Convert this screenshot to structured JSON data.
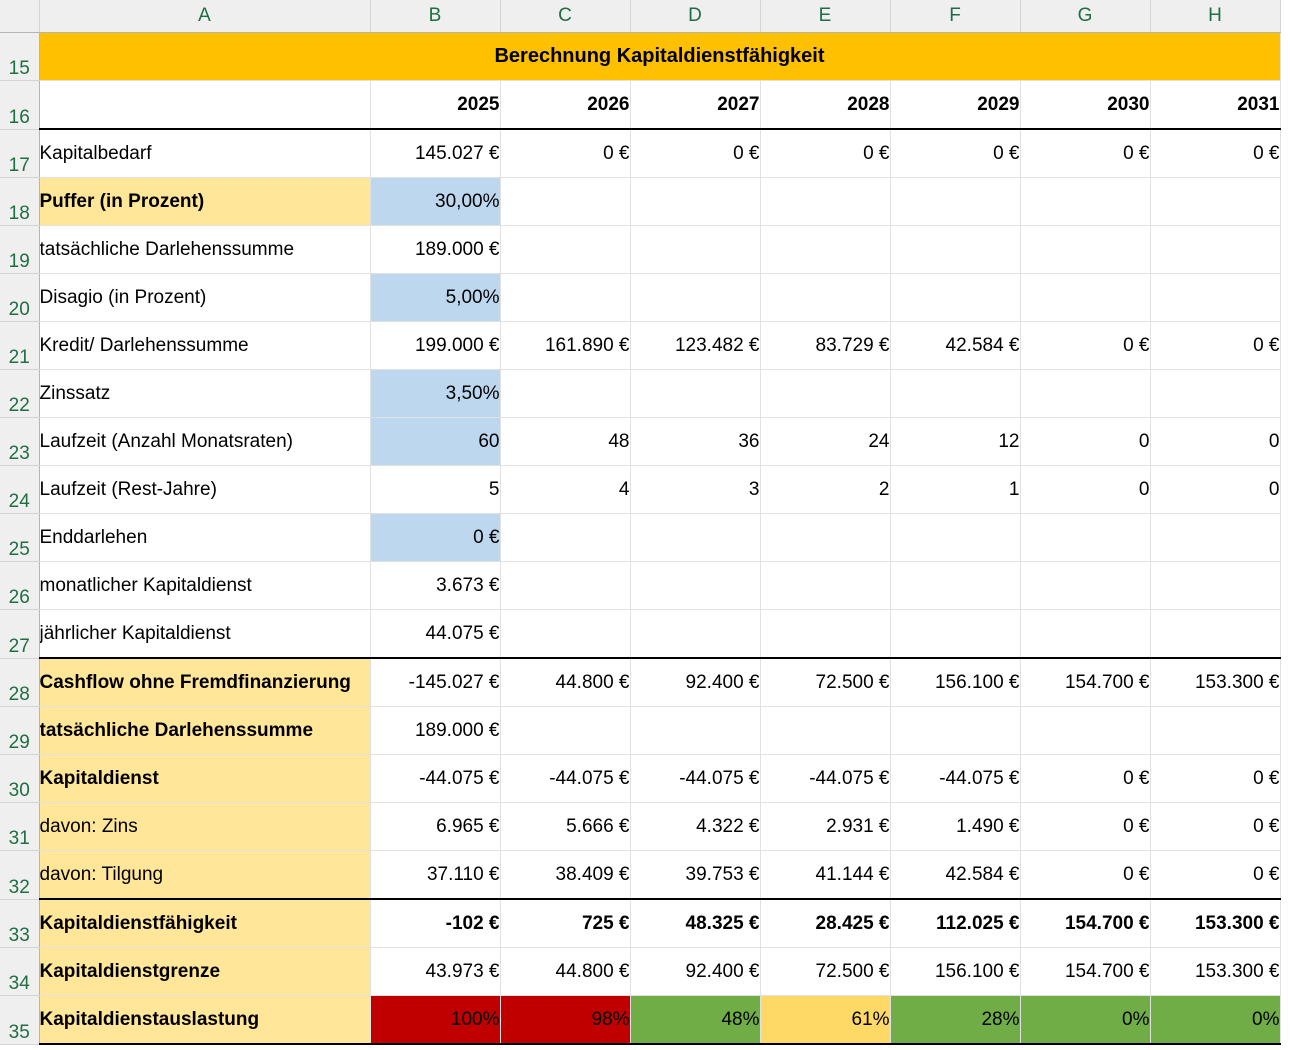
{
  "columns": [
    "A",
    "B",
    "C",
    "D",
    "E",
    "F",
    "G",
    "H"
  ],
  "title": "Berechnung Kapitaldienstfähigkeit",
  "years": [
    "2025",
    "2026",
    "2027",
    "2028",
    "2029",
    "2030",
    "2031"
  ],
  "rows": [
    {
      "num": "17",
      "label": "Kapitalbedarf",
      "values": [
        "145.027 €",
        "0 €",
        "0 €",
        "0 €",
        "0 €",
        "0 €",
        "0 €"
      ]
    },
    {
      "num": "18",
      "label": "Puffer (in Prozent)",
      "values": [
        "30,00%",
        "",
        "",
        "",
        "",
        "",
        ""
      ]
    },
    {
      "num": "19",
      "label": "tatsächliche Darlehenssumme",
      "values": [
        "189.000 €",
        "",
        "",
        "",
        "",
        "",
        ""
      ]
    },
    {
      "num": "20",
      "label": "Disagio (in Prozent)",
      "values": [
        "5,00%",
        "",
        "",
        "",
        "",
        "",
        ""
      ]
    },
    {
      "num": "21",
      "label": "Kredit/ Darlehenssumme",
      "values": [
        "199.000 €",
        "161.890 €",
        "123.482 €",
        "83.729 €",
        "42.584 €",
        "0 €",
        "0 €"
      ]
    },
    {
      "num": "22",
      "label": "Zinssatz",
      "values": [
        "3,50%",
        "",
        "",
        "",
        "",
        "",
        ""
      ]
    },
    {
      "num": "23",
      "label": "Laufzeit (Anzahl Monatsraten)",
      "values": [
        "60",
        "48",
        "36",
        "24",
        "12",
        "0",
        "0"
      ]
    },
    {
      "num": "24",
      "label": "Laufzeit (Rest-Jahre)",
      "values": [
        "5",
        "4",
        "3",
        "2",
        "1",
        "0",
        "0"
      ]
    },
    {
      "num": "25",
      "label": "Enddarlehen",
      "values": [
        "0 €",
        "",
        "",
        "",
        "",
        "",
        ""
      ]
    },
    {
      "num": "26",
      "label": "monatlicher Kapitaldienst",
      "values": [
        "3.673 €",
        "",
        "",
        "",
        "",
        "",
        ""
      ]
    },
    {
      "num": "27",
      "label": "jährlicher Kapitaldienst",
      "values": [
        "44.075 €",
        "",
        "",
        "",
        "",
        "",
        ""
      ]
    },
    {
      "num": "28",
      "label": "Cashflow ohne Fremdfinanzierung",
      "values": [
        "-145.027 €",
        "44.800 €",
        "92.400 €",
        "72.500 €",
        "156.100 €",
        "154.700 €",
        "153.300 €"
      ]
    },
    {
      "num": "29",
      "label": "tatsächliche Darlehenssumme",
      "values": [
        "189.000 €",
        "",
        "",
        "",
        "",
        "",
        ""
      ]
    },
    {
      "num": "30",
      "label": "Kapitaldienst",
      "values": [
        "-44.075 €",
        "-44.075 €",
        "-44.075 €",
        "-44.075 €",
        "-44.075 €",
        "0 €",
        "0 €"
      ]
    },
    {
      "num": "31",
      "label": "davon: Zins",
      "values": [
        "6.965 €",
        "5.666 €",
        "4.322 €",
        "2.931 €",
        "1.490 €",
        "0 €",
        "0 €"
      ]
    },
    {
      "num": "32",
      "label": "davon: Tilgung",
      "values": [
        "37.110 €",
        "38.409 €",
        "39.753 €",
        "41.144 €",
        "42.584 €",
        "0 €",
        "0 €"
      ]
    },
    {
      "num": "33",
      "label": "Kapitaldienstfähigkeit",
      "values": [
        "-102 €",
        "725 €",
        "48.325 €",
        "28.425 €",
        "112.025 €",
        "154.700 €",
        "153.300 €"
      ]
    },
    {
      "num": "34",
      "label": "Kapitaldienstgrenze",
      "values": [
        "43.973 €",
        "44.800 €",
        "92.400 €",
        "72.500 €",
        "156.100 €",
        "154.700 €",
        "153.300 €"
      ]
    },
    {
      "num": "35",
      "label": "Kapitaldienstauslastung",
      "values": [
        "100%",
        "98%",
        "48%",
        "61%",
        "28%",
        "0%",
        "0%"
      ]
    }
  ],
  "colors": {
    "title_bg": "#ffc000",
    "label_highlight": "#ffe699",
    "input_cell": "#bdd7ee",
    "status_red": "#c00000",
    "status_green": "#70ad47",
    "status_yellow": "#ffd966",
    "header_text": "#1f6e43"
  }
}
